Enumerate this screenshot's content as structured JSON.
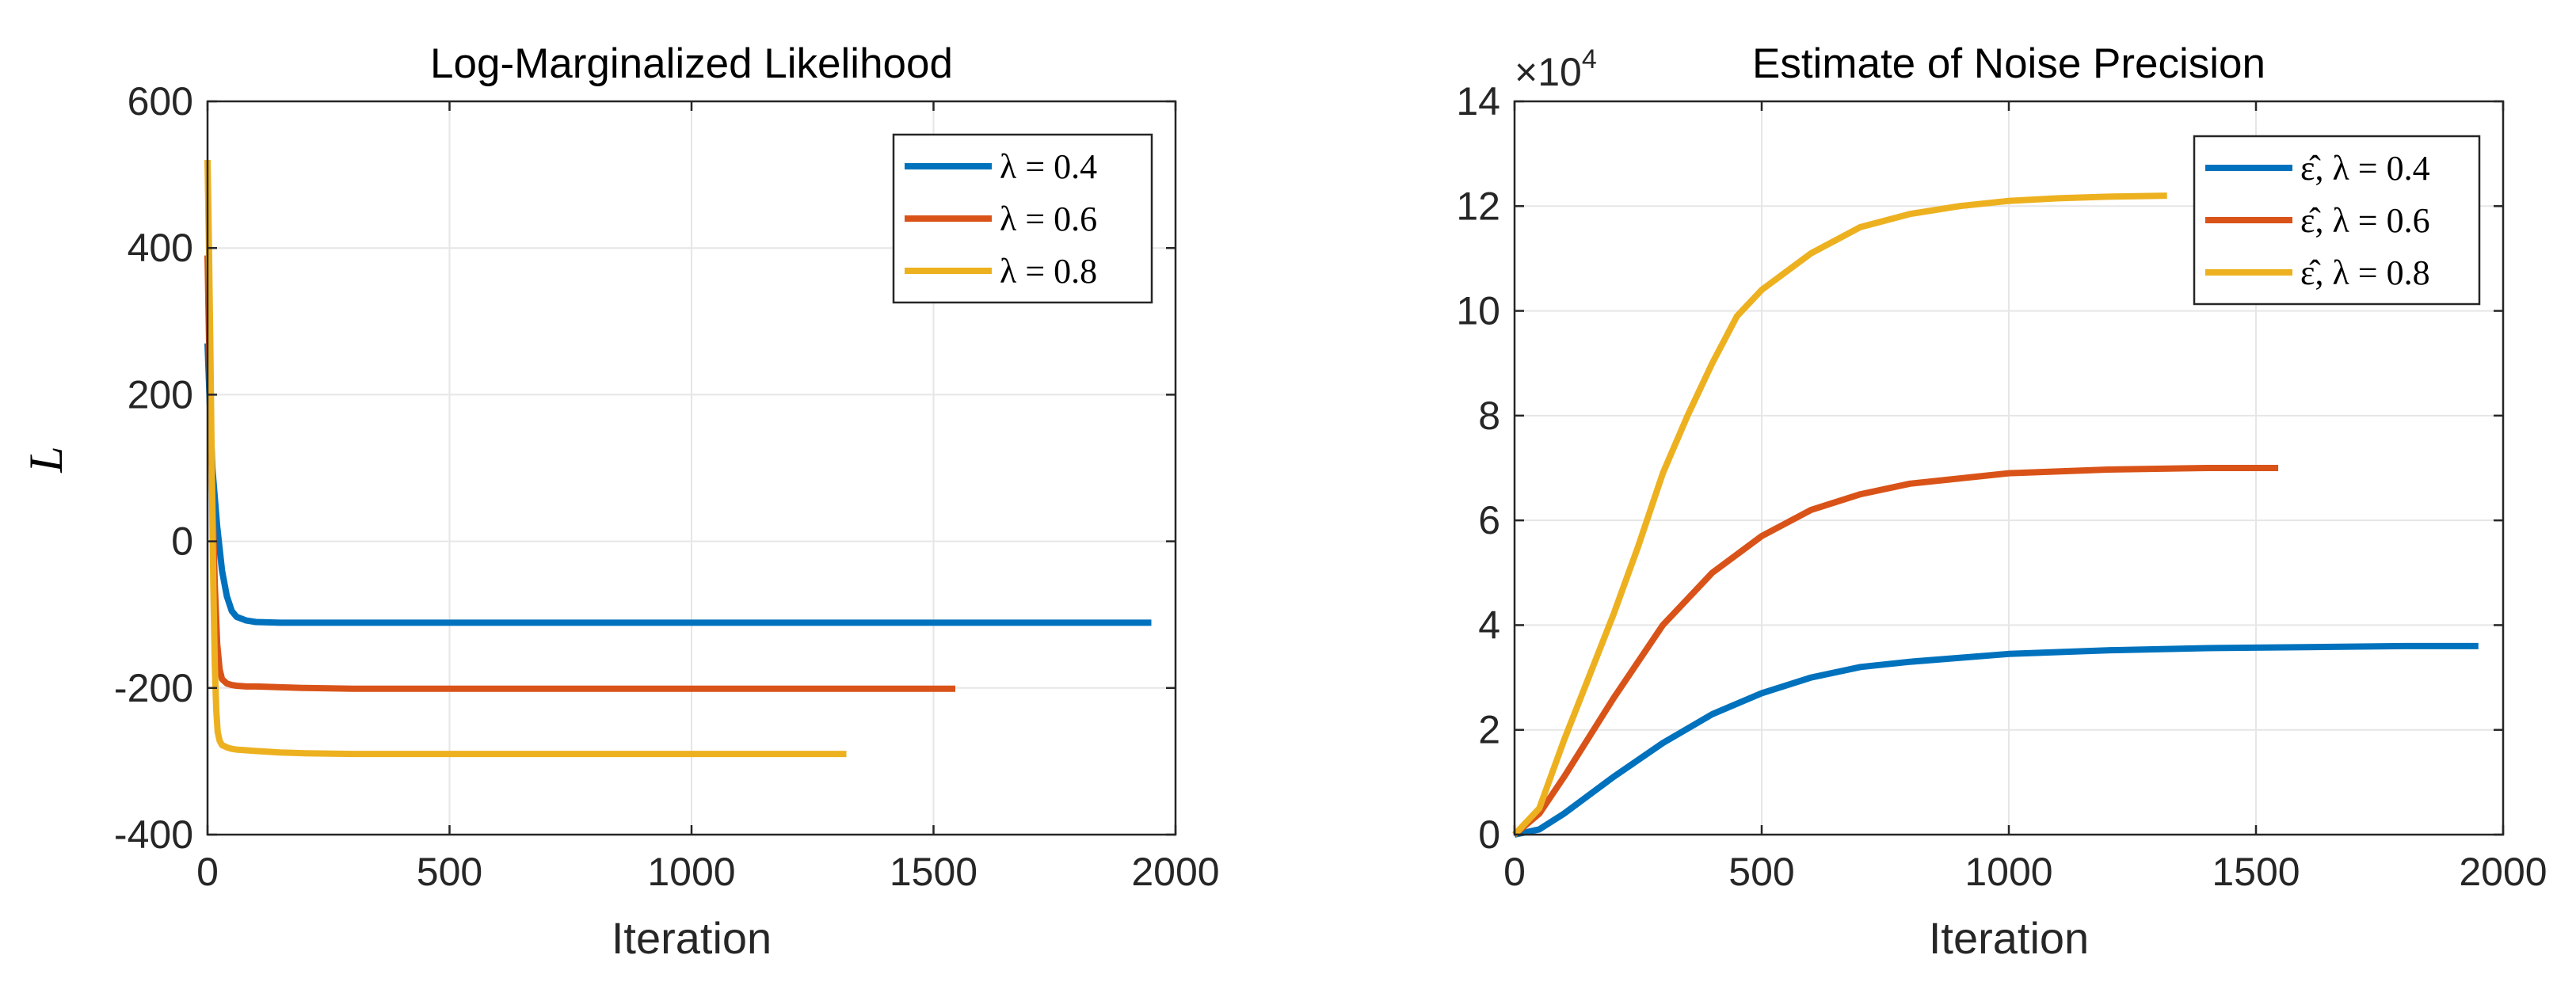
{
  "chart_data": [
    {
      "type": "line",
      "title": "Log-Marginalized Likelihood",
      "xlabel": "Iteration",
      "ylabel": "L",
      "xlim": [
        0,
        2000
      ],
      "ylim": [
        -400,
        600
      ],
      "xticks": [
        0,
        500,
        1000,
        1500,
        2000
      ],
      "yticks": [
        -400,
        -200,
        0,
        200,
        400,
        600
      ],
      "xtick_labels": [
        "0",
        "500",
        "1000",
        "1500",
        "2000"
      ],
      "ytick_labels": [
        "-400",
        "-200",
        "0",
        "200",
        "400",
        "600"
      ],
      "grid": true,
      "legend_position": "top-right",
      "series": [
        {
          "name": "λ = 0.4",
          "color": "#0072BD",
          "x": [
            0,
            5,
            10,
            20,
            30,
            40,
            50,
            60,
            80,
            100,
            150,
            200,
            300,
            500,
            1000,
            1500,
            1950
          ],
          "y": [
            270,
            180,
            100,
            20,
            -40,
            -75,
            -95,
            -103,
            -108,
            -110,
            -111,
            -111,
            -111,
            -111,
            -111,
            -111,
            -111
          ]
        },
        {
          "name": "λ = 0.6",
          "color": "#D95319",
          "x": [
            0,
            5,
            10,
            15,
            20,
            25,
            30,
            40,
            50,
            60,
            80,
            100,
            150,
            200,
            300,
            500,
            1000,
            1545
          ],
          "y": [
            390,
            200,
            60,
            -60,
            -140,
            -175,
            -188,
            -194,
            -196,
            -197,
            -198,
            -198,
            -199,
            -200,
            -201,
            -201,
            -201,
            -201
          ]
        },
        {
          "name": "λ = 0.8",
          "color": "#EDB120",
          "x": [
            0,
            3,
            6,
            9,
            12,
            15,
            18,
            21,
            25,
            30,
            40,
            50,
            60,
            80,
            100,
            150,
            200,
            300,
            500,
            1000,
            1320
          ],
          "y": [
            520,
            400,
            250,
            90,
            -60,
            -170,
            -230,
            -260,
            -272,
            -278,
            -281,
            -283,
            -284,
            -285,
            -286,
            -288,
            -289,
            -290,
            -290,
            -290,
            -290
          ]
        }
      ]
    },
    {
      "type": "line",
      "title": "Estimate of Noise Precision",
      "xlabel": "Iteration",
      "ylabel": "",
      "exponent_label": "×10",
      "exponent_power": "4",
      "xlim": [
        0,
        2000
      ],
      "ylim": [
        0,
        14
      ],
      "xticks": [
        0,
        500,
        1000,
        1500,
        2000
      ],
      "yticks": [
        0,
        2,
        4,
        6,
        8,
        10,
        12,
        14
      ],
      "xtick_labels": [
        "0",
        "500",
        "1000",
        "1500",
        "2000"
      ],
      "ytick_labels": [
        "0",
        "2",
        "4",
        "6",
        "8",
        "10",
        "12",
        "14"
      ],
      "grid": true,
      "legend_position": "top-right",
      "series": [
        {
          "name": "ε̂, λ = 0.4",
          "color": "#0072BD",
          "x": [
            0,
            50,
            100,
            200,
            300,
            400,
            500,
            600,
            700,
            800,
            1000,
            1200,
            1400,
            1600,
            1800,
            1950
          ],
          "y": [
            0,
            0.1,
            0.4,
            1.1,
            1.75,
            2.3,
            2.7,
            3.0,
            3.2,
            3.3,
            3.45,
            3.52,
            3.56,
            3.58,
            3.6,
            3.6
          ]
        },
        {
          "name": "ε̂, λ = 0.6",
          "color": "#D95319",
          "x": [
            0,
            50,
            100,
            200,
            300,
            400,
            500,
            600,
            700,
            800,
            1000,
            1200,
            1400,
            1545
          ],
          "y": [
            0,
            0.4,
            1.1,
            2.6,
            4.0,
            5.0,
            5.7,
            6.2,
            6.5,
            6.7,
            6.9,
            6.97,
            7.0,
            7.0
          ]
        },
        {
          "name": "ε̂, λ = 0.8",
          "color": "#EDB120",
          "x": [
            0,
            50,
            100,
            150,
            200,
            250,
            300,
            350,
            400,
            450,
            500,
            600,
            700,
            800,
            900,
            1000,
            1100,
            1200,
            1320
          ],
          "y": [
            0,
            0.5,
            1.8,
            3.0,
            4.2,
            5.5,
            6.9,
            8.0,
            9.0,
            9.9,
            10.4,
            11.1,
            11.6,
            11.85,
            12.0,
            12.1,
            12.15,
            12.18,
            12.2
          ]
        }
      ]
    }
  ]
}
